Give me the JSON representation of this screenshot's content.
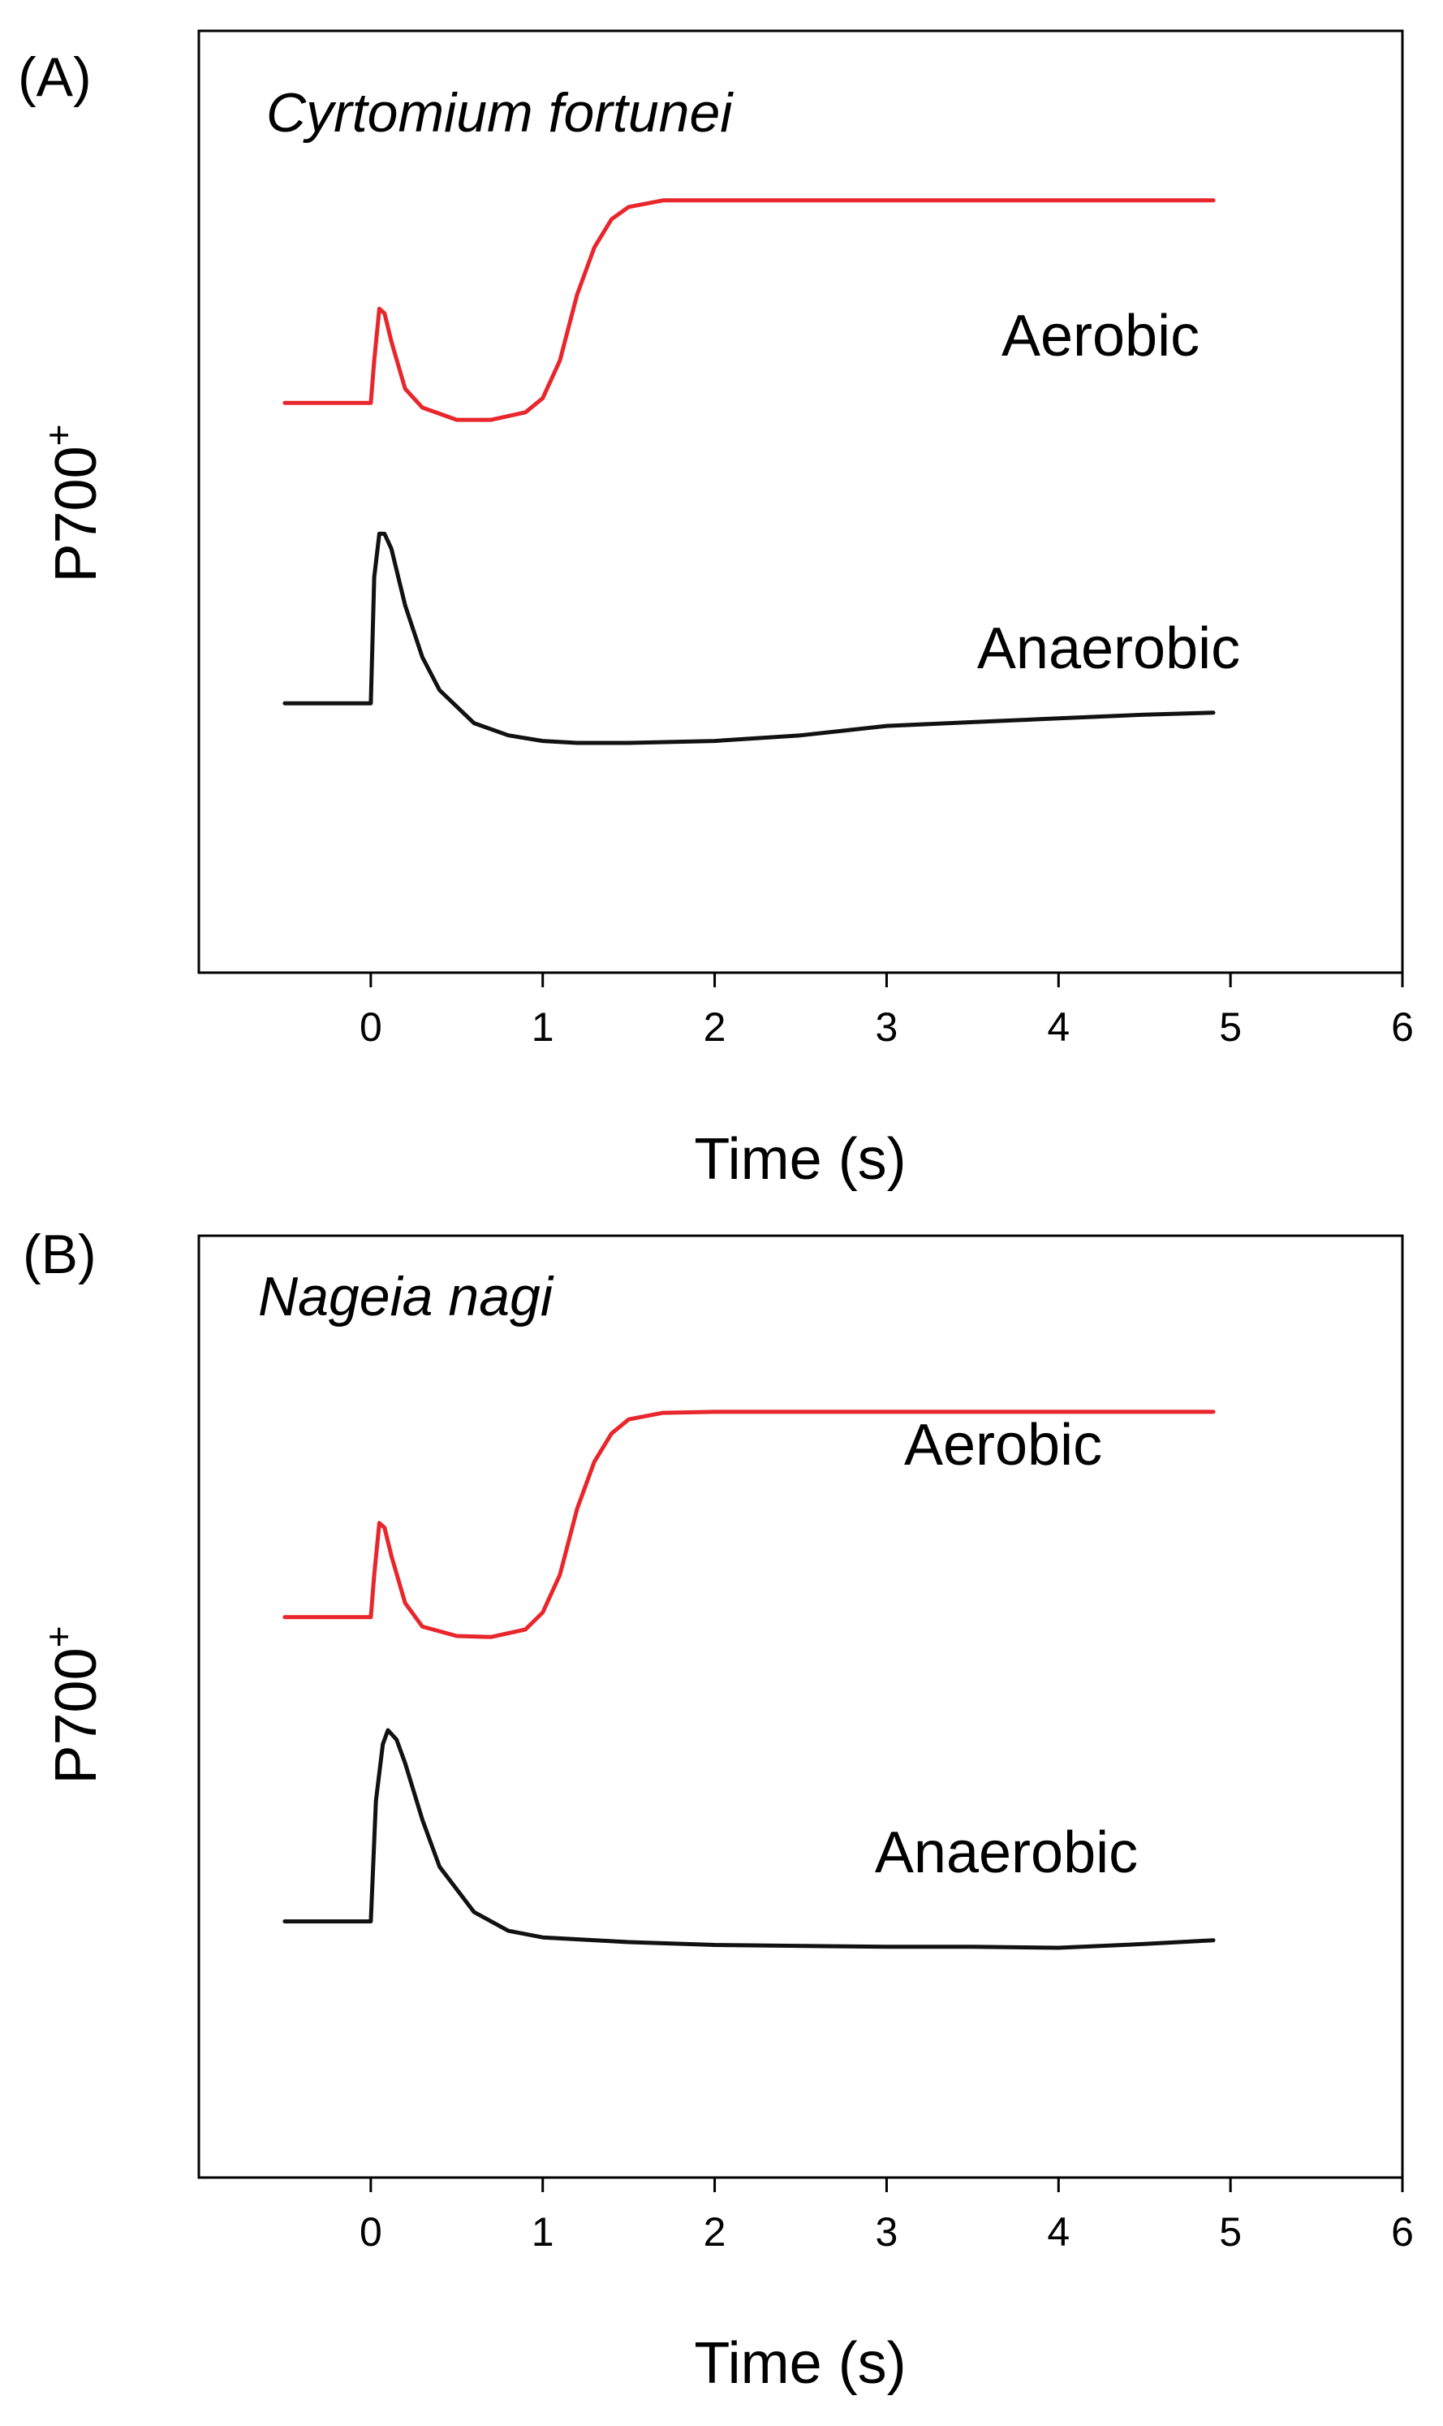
{
  "chart_data": [
    {
      "type": "line",
      "panel_label": "(A)",
      "title": "Cyrtomium fortunei",
      "xlabel": "Time (s)",
      "ylabel": "P700",
      "ylabel_superscript": "+",
      "xlim": [
        -1,
        6
      ],
      "ylim": [
        0,
        1
      ],
      "xticks": [
        0,
        1,
        2,
        3,
        4,
        5,
        6
      ],
      "grid": false,
      "series": [
        {
          "name": "Aerobic",
          "color": "#e8262b",
          "points": [
            [
              -0.5,
              0.605
            ],
            [
              0.0,
              0.605
            ],
            [
              0.02,
              0.65
            ],
            [
              0.05,
              0.705
            ],
            [
              0.08,
              0.7
            ],
            [
              0.12,
              0.67
            ],
            [
              0.2,
              0.62
            ],
            [
              0.3,
              0.6
            ],
            [
              0.5,
              0.587
            ],
            [
              0.7,
              0.587
            ],
            [
              0.9,
              0.595
            ],
            [
              1.0,
              0.61
            ],
            [
              1.1,
              0.65
            ],
            [
              1.2,
              0.72
            ],
            [
              1.3,
              0.77
            ],
            [
              1.4,
              0.8
            ],
            [
              1.5,
              0.813
            ],
            [
              1.7,
              0.82
            ],
            [
              2.0,
              0.82
            ],
            [
              3.0,
              0.82
            ],
            [
              4.0,
              0.82
            ],
            [
              4.9,
              0.82
            ]
          ]
        },
        {
          "name": "Anaerobic",
          "color": "#111111",
          "points": [
            [
              -0.5,
              0.286
            ],
            [
              0.0,
              0.286
            ],
            [
              0.02,
              0.42
            ],
            [
              0.05,
              0.466
            ],
            [
              0.08,
              0.466
            ],
            [
              0.12,
              0.45
            ],
            [
              0.2,
              0.39
            ],
            [
              0.3,
              0.335
            ],
            [
              0.4,
              0.3
            ],
            [
              0.6,
              0.265
            ],
            [
              0.8,
              0.252
            ],
            [
              1.0,
              0.246
            ],
            [
              1.2,
              0.244
            ],
            [
              1.5,
              0.244
            ],
            [
              2.0,
              0.246
            ],
            [
              2.5,
              0.252
            ],
            [
              3.0,
              0.262
            ],
            [
              3.5,
              0.266
            ],
            [
              4.0,
              0.27
            ],
            [
              4.5,
              0.274
            ],
            [
              4.9,
              0.276
            ]
          ]
        }
      ]
    },
    {
      "type": "line",
      "panel_label": "(B)",
      "title": "Nageia nagi",
      "xlabel": "Time (s)",
      "ylabel": "P700",
      "ylabel_superscript": "+",
      "xlim": [
        -1,
        6
      ],
      "ylim": [
        0,
        1
      ],
      "xticks": [
        0,
        1,
        2,
        3,
        4,
        5,
        6
      ],
      "grid": false,
      "series": [
        {
          "name": "Aerobic",
          "color": "#e8262b",
          "points": [
            [
              -0.5,
              0.595
            ],
            [
              0.0,
              0.595
            ],
            [
              0.02,
              0.64
            ],
            [
              0.05,
              0.695
            ],
            [
              0.08,
              0.69
            ],
            [
              0.12,
              0.66
            ],
            [
              0.2,
              0.61
            ],
            [
              0.3,
              0.585
            ],
            [
              0.5,
              0.575
            ],
            [
              0.7,
              0.574
            ],
            [
              0.9,
              0.582
            ],
            [
              1.0,
              0.6
            ],
            [
              1.1,
              0.64
            ],
            [
              1.2,
              0.71
            ],
            [
              1.3,
              0.76
            ],
            [
              1.4,
              0.79
            ],
            [
              1.5,
              0.805
            ],
            [
              1.7,
              0.812
            ],
            [
              2.0,
              0.813
            ],
            [
              3.0,
              0.813
            ],
            [
              4.0,
              0.813
            ],
            [
              4.9,
              0.813
            ]
          ]
        },
        {
          "name": "Anaerobic",
          "color": "#111111",
          "points": [
            [
              -0.5,
              0.272
            ],
            [
              0.0,
              0.272
            ],
            [
              0.03,
              0.4
            ],
            [
              0.07,
              0.46
            ],
            [
              0.1,
              0.475
            ],
            [
              0.15,
              0.465
            ],
            [
              0.2,
              0.44
            ],
            [
              0.3,
              0.38
            ],
            [
              0.4,
              0.33
            ],
            [
              0.6,
              0.282
            ],
            [
              0.8,
              0.262
            ],
            [
              1.0,
              0.255
            ],
            [
              1.5,
              0.25
            ],
            [
              2.0,
              0.247
            ],
            [
              3.0,
              0.245
            ],
            [
              3.5,
              0.245
            ],
            [
              4.0,
              0.244
            ],
            [
              4.5,
              0.248
            ],
            [
              4.9,
              0.252
            ]
          ]
        }
      ]
    }
  ]
}
